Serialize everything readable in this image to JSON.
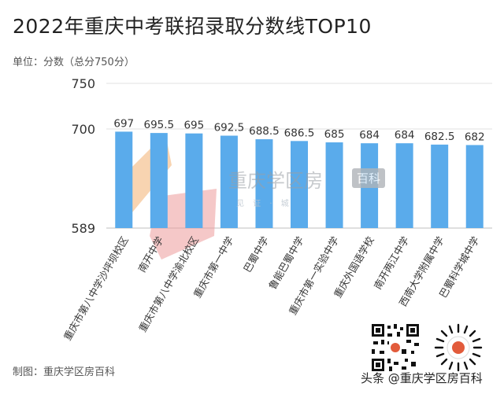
{
  "title": "2022年重庆中考联招录取分数线TOP10",
  "unit_label": "单位：分数（总分750分）",
  "footer_credit": "制图：重庆学区房百科",
  "source_label": "头条 @重庆学区房百科",
  "watermark": {
    "text": "重庆学区房",
    "badge": "百科",
    "sub": "见 证 · 城"
  },
  "colors": {
    "bar": "#5aabeb",
    "text": "#333333",
    "axis": "#d9d9d9"
  },
  "chart_data": {
    "type": "bar",
    "title": "2022年重庆中考联招录取分数线TOP10",
    "ylabel": "单位：分数（总分750分）",
    "categories": [
      "重庆市第八中学沙坪坝校区",
      "南开中学",
      "重庆市第八中学渝北校区",
      "重庆市第一中学",
      "巴蜀中学",
      "鲁能巴蜀中学",
      "重庆市第一实验中学",
      "重庆外国语学校",
      "南开两江中学",
      "西南大学附属中学",
      "巴蜀科学城中学"
    ],
    "values": [
      697,
      695.5,
      695,
      692.5,
      688.5,
      686.5,
      685,
      684,
      684,
      682.5,
      682
    ],
    "value_labels": [
      "697",
      "695.5",
      "695",
      "692.5",
      "688.5",
      "686.5",
      "685",
      "684",
      "684",
      "682.5",
      "682"
    ],
    "yticks": [
      "750",
      "700",
      "589"
    ],
    "ylim": [
      589,
      750
    ],
    "grid": true,
    "scale": "broken"
  }
}
